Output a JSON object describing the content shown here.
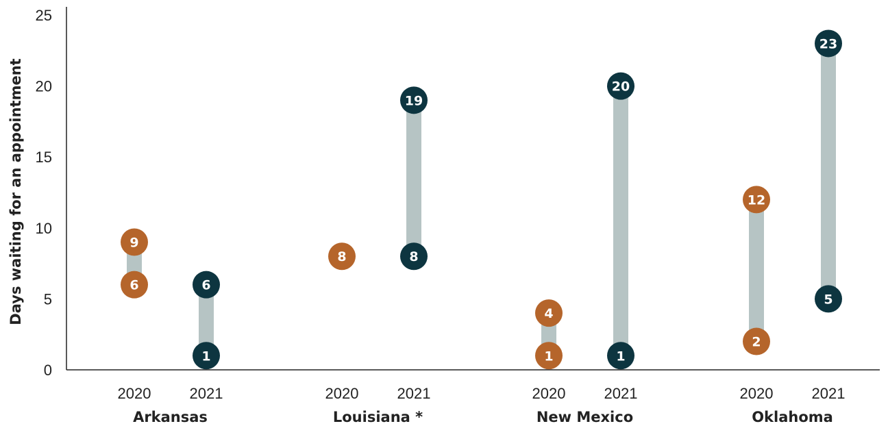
{
  "chart_data": {
    "type": "range-dot",
    "ylabel": "Days waiting for an appointment",
    "ylim": [
      0,
      25
    ],
    "yticks": [
      0,
      5,
      10,
      15,
      20,
      25
    ],
    "colors": {
      "2020": "#b5652b",
      "2021": "#0d3540",
      "range": "#b6c4c4"
    },
    "groups": [
      {
        "name": "Arkansas",
        "years": [
          {
            "year": "2020",
            "min": 6,
            "max": 9
          },
          {
            "year": "2021",
            "min": 1,
            "max": 6
          }
        ]
      },
      {
        "name": "Louisiana *",
        "years": [
          {
            "year": "2020",
            "min": 8,
            "max": 8
          },
          {
            "year": "2021",
            "min": 8,
            "max": 19
          }
        ]
      },
      {
        "name": "New Mexico",
        "years": [
          {
            "year": "2020",
            "min": 1,
            "max": 4
          },
          {
            "year": "2021",
            "min": 1,
            "max": 20
          }
        ]
      },
      {
        "name": "Oklahoma",
        "years": [
          {
            "year": "2020",
            "min": 2,
            "max": 12
          },
          {
            "year": "2021",
            "min": 5,
            "max": 23
          }
        ]
      }
    ]
  }
}
